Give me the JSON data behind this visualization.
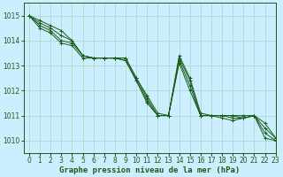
{
  "title": "Graphe pression niveau de la mer (hPa)",
  "bg_color": "#cceeff",
  "grid_color": "#aaddcc",
  "line_color": "#1a5c1a",
  "xlim": [
    -0.5,
    23
  ],
  "ylim": [
    1009.5,
    1015.5
  ],
  "yticks": [
    1010,
    1011,
    1012,
    1013,
    1014,
    1015
  ],
  "xticks": [
    0,
    1,
    2,
    3,
    4,
    5,
    6,
    7,
    8,
    9,
    10,
    11,
    12,
    13,
    14,
    15,
    16,
    17,
    18,
    19,
    20,
    21,
    22,
    23
  ],
  "series": [
    [
      1015.0,
      1014.8,
      1014.6,
      1014.4,
      1014.0,
      1013.4,
      1013.3,
      1013.3,
      1013.3,
      1013.3,
      1012.5,
      1011.8,
      1011.1,
      1011.0,
      1013.4,
      1012.5,
      1011.1,
      1011.0,
      1011.0,
      1011.0,
      1011.0,
      1011.0,
      1010.7,
      1010.1
    ],
    [
      1015.0,
      1014.7,
      1014.5,
      1014.2,
      1014.0,
      1013.4,
      1013.3,
      1013.3,
      1013.3,
      1013.3,
      1012.5,
      1011.7,
      1011.0,
      1011.0,
      1013.3,
      1012.4,
      1011.0,
      1011.0,
      1011.0,
      1011.0,
      1010.9,
      1011.0,
      1010.5,
      1010.1
    ],
    [
      1015.0,
      1014.6,
      1014.4,
      1014.0,
      1013.9,
      1013.4,
      1013.3,
      1013.3,
      1013.3,
      1013.2,
      1012.4,
      1011.6,
      1011.0,
      1011.0,
      1013.2,
      1012.2,
      1011.0,
      1011.0,
      1011.0,
      1010.9,
      1010.9,
      1011.0,
      1010.3,
      1010.0
    ],
    [
      1015.0,
      1014.5,
      1014.3,
      1013.9,
      1013.8,
      1013.3,
      1013.3,
      1013.3,
      1013.3,
      1013.2,
      1012.4,
      1011.5,
      1011.0,
      1011.0,
      1013.1,
      1012.0,
      1011.0,
      1011.0,
      1010.9,
      1010.8,
      1010.9,
      1011.0,
      1010.1,
      1010.0
    ]
  ],
  "tick_fontsize": 5.5,
  "label_fontsize": 6.5
}
